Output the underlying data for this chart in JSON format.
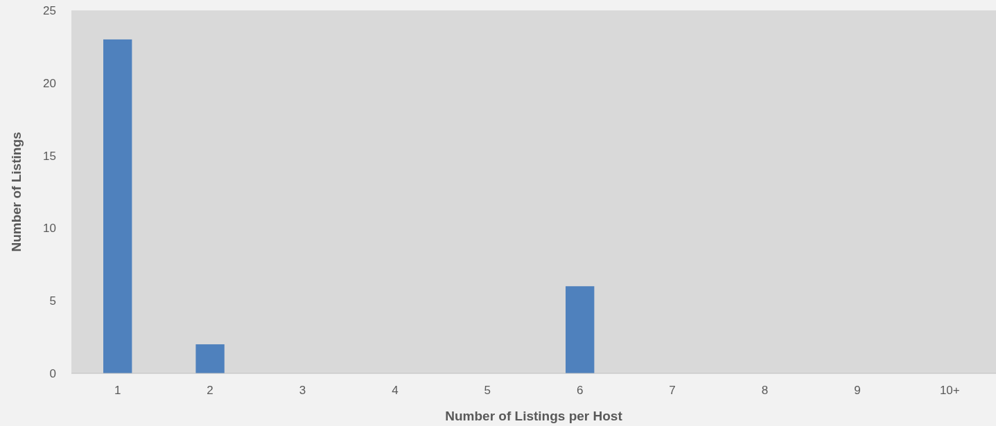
{
  "chart_data": {
    "type": "bar",
    "xlabel": "Number of Listings per Host",
    "ylabel": "Number of Listings",
    "categories": [
      "1",
      "2",
      "3",
      "4",
      "5",
      "6",
      "7",
      "8",
      "9",
      "10+"
    ],
    "values": [
      23,
      2,
      0,
      0,
      0,
      6,
      0,
      0,
      0,
      0
    ],
    "color": "#4f81bd",
    "ylim": [
      0,
      25
    ],
    "yticks": [
      0,
      5,
      10,
      15,
      20,
      25
    ],
    "grid": false
  }
}
